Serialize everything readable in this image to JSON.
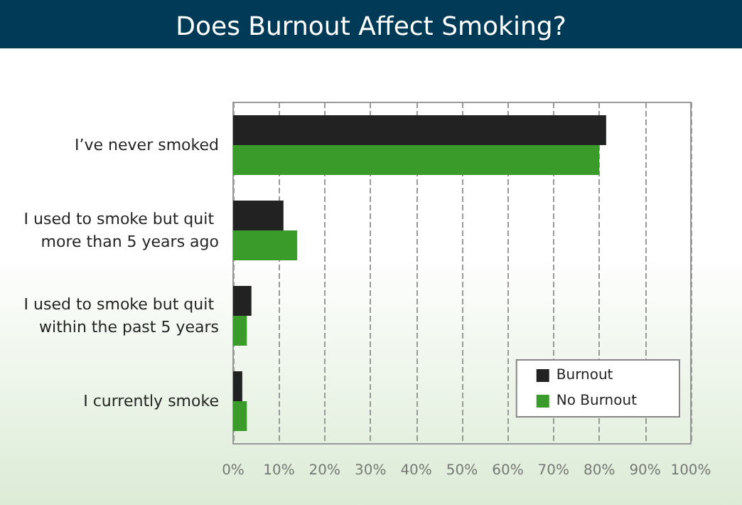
{
  "chart_data": {
    "type": "bar",
    "orientation": "horizontal",
    "title": "Does Burnout Affect Smoking?",
    "categories": [
      "I’ve never smoked",
      "I used to smoke but quit more than 5 years ago",
      "I used to smoke but quit within the past 5 years",
      "I currently smoke"
    ],
    "series": [
      {
        "name": "Burnout",
        "color": "#222222",
        "values": [
          81.5,
          11,
          4,
          2
        ]
      },
      {
        "name": "No Burnout",
        "color": "#3a9a2a",
        "values": [
          80,
          14,
          3,
          3
        ]
      }
    ],
    "xlim": [
      0,
      100
    ],
    "xticks": [
      {
        "value": 0,
        "label": "0%"
      },
      {
        "value": 10,
        "label": "10%"
      },
      {
        "value": 20,
        "label": "20%"
      },
      {
        "value": 30,
        "label": "30%"
      },
      {
        "value": 40,
        "label": "40%"
      },
      {
        "value": 50,
        "label": "50%"
      },
      {
        "value": 60,
        "label": "60%"
      },
      {
        "value": 70,
        "label": "70%"
      },
      {
        "value": 80,
        "label": "80%"
      },
      {
        "value": 90,
        "label": "90%"
      },
      {
        "value": 100,
        "label": "100%"
      }
    ],
    "grid": "x",
    "legend": "bottom right"
  }
}
